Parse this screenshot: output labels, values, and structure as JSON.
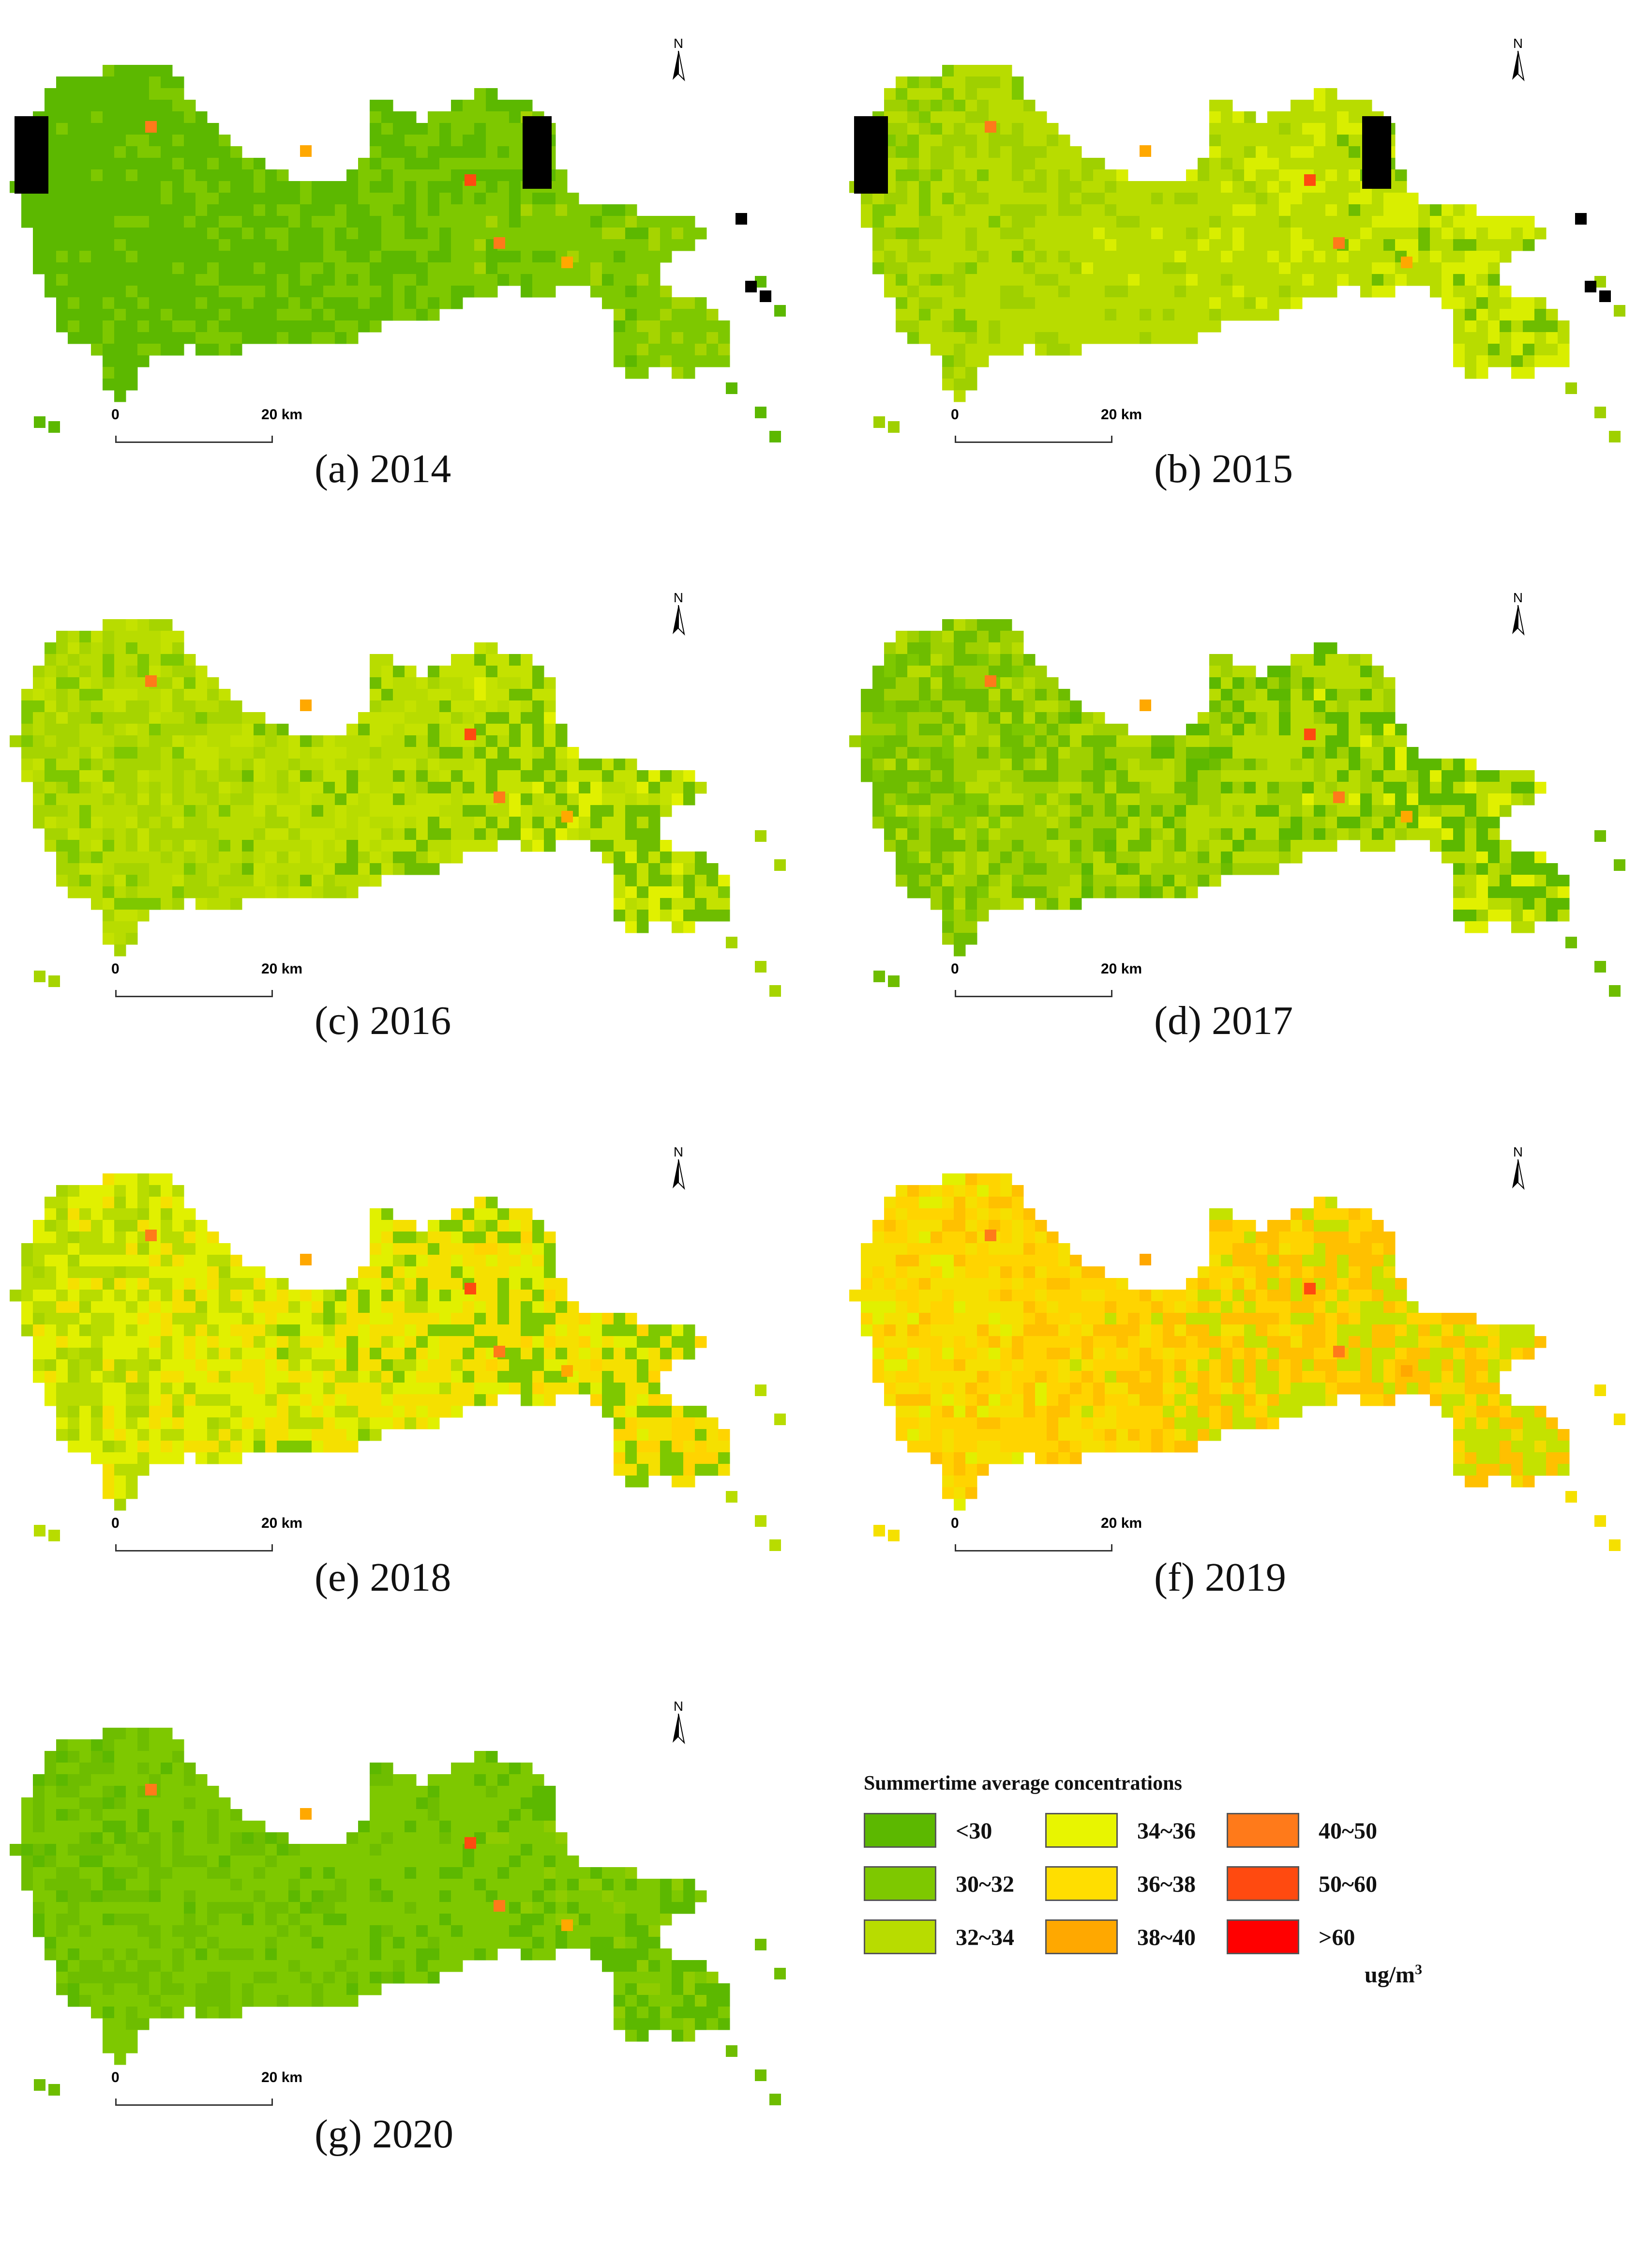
{
  "panels": [
    {
      "id": "a",
      "caption": "(a) 2014",
      "palette": [
        "#5cb800",
        "#5cb800",
        "#5cb800",
        "#7ec800",
        "#7ec800",
        "#a6d400"
      ],
      "nodata": true
    },
    {
      "id": "b",
      "caption": "(b) 2015",
      "palette": [
        "#7ec800",
        "#9fd000",
        "#b8dc00",
        "#b8dc00",
        "#d9ee00",
        "#6ebd00"
      ],
      "nodata": true
    },
    {
      "id": "c",
      "caption": "(c) 2016",
      "palette": [
        "#7ec800",
        "#a6d400",
        "#b8dc00",
        "#c4e200",
        "#6ebd00",
        "#e1f000"
      ],
      "nodata": false
    },
    {
      "id": "d",
      "caption": "(d) 2017",
      "palette": [
        "#7ec800",
        "#6ebd00",
        "#9fd000",
        "#b8dc00",
        "#5cb800",
        "#e1f000"
      ],
      "nodata": false
    },
    {
      "id": "e",
      "caption": "(e) 2018",
      "palette": [
        "#a6d400",
        "#b8dc00",
        "#e1f000",
        "#f5e000",
        "#7ec800",
        "#ffd400"
      ],
      "nodata": false
    },
    {
      "id": "f",
      "caption": "(f) 2019",
      "palette": [
        "#e1f000",
        "#f5e000",
        "#ffd400",
        "#ffc000",
        "#c4e200",
        "#f0dc00"
      ],
      "nodata": false
    },
    {
      "id": "g",
      "caption": "(g) 2020",
      "palette": [
        "#5cb800",
        "#6ebd00",
        "#7ec800",
        "#7ec800",
        "#5cb800",
        "#8fcc00"
      ],
      "nodata": false
    }
  ],
  "north_label": "N",
  "scale": {
    "start": "0",
    "end": "20 km"
  },
  "legend": {
    "title": "Summertime average concentrations",
    "items": [
      {
        "label": "<30",
        "color": "#5cb800"
      },
      {
        "label": "30~32",
        "color": "#7ec800"
      },
      {
        "label": "32~34",
        "color": "#b8dc00"
      },
      {
        "label": "34~36",
        "color": "#e8f500"
      },
      {
        "label": "36~38",
        "color": "#ffde00"
      },
      {
        "label": "38~40",
        "color": "#ffa800"
      },
      {
        "label": "40~50",
        "color": "#ff7a1a"
      },
      {
        "label": "50~60",
        "color": "#ff4a10"
      },
      {
        "label": ">60",
        "color": "#ff0000"
      }
    ],
    "unit": "ug/m",
    "unit_sup": "3"
  }
}
